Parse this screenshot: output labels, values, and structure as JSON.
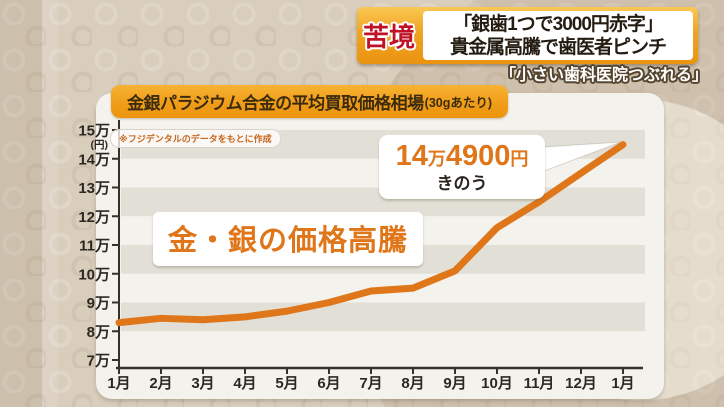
{
  "colors": {
    "accent_orange": "#e0761a",
    "title_box_orange": "#ef9c17",
    "badge_red": "#bf1226",
    "stripe_grey": "#e2e0d6",
    "axis_dark": "#35312a",
    "label_dark": "#2c2822",
    "panel_bg": "#f4f2ec"
  },
  "headline": {
    "badge": "苦境",
    "line1": "「銀歯1つで3000円赤字」",
    "line2": "貴金属高騰で歯医者ピンチ",
    "sub": "「小さい歯科医院つぶれる」"
  },
  "chart_data": {
    "type": "line",
    "title": "金銀パラジウム合金の平均買取価格相場",
    "title_suffix": "(30gあたり)",
    "source_note": "※フジデンタルのデータをもとに作成",
    "annotation": "金・銀の価格高騰",
    "categories": [
      "1月",
      "2月",
      "3月",
      "4月",
      "5月",
      "6月",
      "7月",
      "8月",
      "9月",
      "10月",
      "11月",
      "12月",
      "1月"
    ],
    "values": [
      8.3,
      8.45,
      8.4,
      8.5,
      8.7,
      9.0,
      9.4,
      9.5,
      10.1,
      11.6,
      12.5,
      13.5,
      14.49
    ],
    "unit": "万円",
    "ylim": [
      7,
      15
    ],
    "y_ticks": [
      15,
      14,
      13,
      12,
      11,
      10,
      9,
      8,
      7
    ],
    "y_tick_suffix": "万",
    "y_axis_unit": "(円)",
    "grid": "horizontal-bands",
    "legend": "none",
    "line_color": "#e0761a",
    "last_point": {
      "label": "14万4900円",
      "parts": {
        "num1": "14",
        "unit1": "万",
        "num2": "4900",
        "unit2": "円"
      },
      "date_label": "きのう"
    }
  }
}
